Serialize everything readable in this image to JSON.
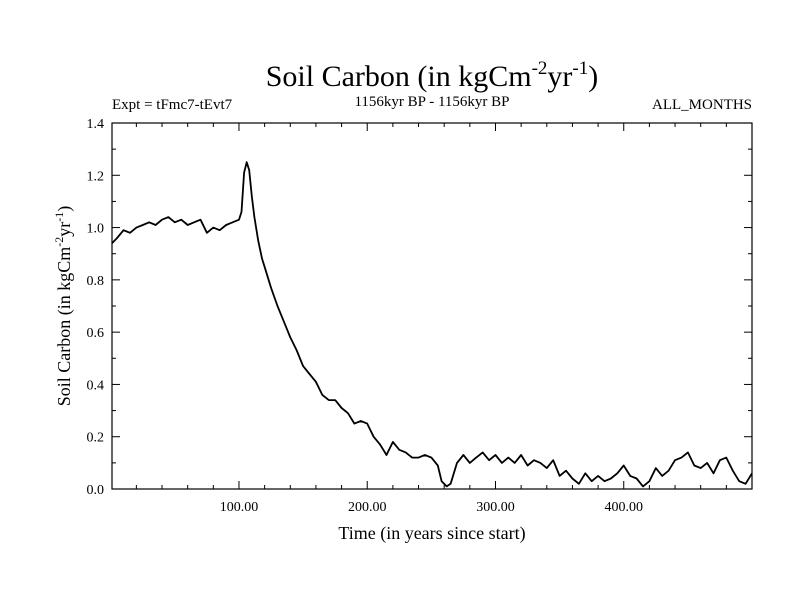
{
  "chart_data": {
    "type": "line",
    "title": {
      "main": "Soil Carbon (in kgCm",
      "sup1": "-2",
      "mid": "yr",
      "sup2": "-1",
      "end": ")"
    },
    "left_subtitle": "Expt = tFmc7-tEvt7",
    "center_subtitle": "1156kyr BP - 1156kyr BP",
    "right_subtitle": "ALL_MONTHS",
    "xlabel": "Time (in years since start)",
    "ylabel": {
      "main": "Soil Carbon (in kgCm",
      "sup1": "-2",
      "mid": "yr",
      "sup2": "-1",
      "end": ")"
    },
    "xlim": [
      1,
      500
    ],
    "ylim": [
      0.0,
      1.4
    ],
    "xticks": [
      {
        "value": 100,
        "label": "100.00"
      },
      {
        "value": 200,
        "label": "200.00"
      },
      {
        "value": 300,
        "label": "300.00"
      },
      {
        "value": 400,
        "label": "400.00"
      }
    ],
    "yticks": [
      {
        "value": 0.0,
        "label": "0.0"
      },
      {
        "value": 0.2,
        "label": "0.2"
      },
      {
        "value": 0.4,
        "label": "0.4"
      },
      {
        "value": 0.6,
        "label": "0.6"
      },
      {
        "value": 0.8,
        "label": "0.8"
      },
      {
        "value": 1.0,
        "label": "1.0"
      },
      {
        "value": 1.2,
        "label": "1.2"
      },
      {
        "value": 1.4,
        "label": "1.4"
      }
    ],
    "grid": false,
    "series": [
      {
        "color": "#000000",
        "x": [
          1,
          5,
          10,
          15,
          20,
          25,
          30,
          35,
          40,
          45,
          50,
          55,
          60,
          65,
          70,
          75,
          80,
          85,
          90,
          95,
          100,
          102,
          104,
          106,
          108,
          110,
          112,
          115,
          118,
          120,
          125,
          130,
          135,
          140,
          145,
          150,
          155,
          160,
          165,
          170,
          175,
          180,
          185,
          190,
          195,
          200,
          205,
          210,
          215,
          220,
          225,
          230,
          235,
          240,
          245,
          250,
          255,
          258,
          262,
          265,
          270,
          275,
          280,
          285,
          290,
          295,
          300,
          305,
          310,
          315,
          320,
          325,
          330,
          335,
          340,
          345,
          350,
          355,
          360,
          365,
          370,
          375,
          380,
          385,
          390,
          395,
          400,
          405,
          410,
          415,
          420,
          425,
          430,
          435,
          440,
          445,
          450,
          455,
          460,
          465,
          470,
          475,
          480,
          485,
          490,
          495,
          500
        ],
        "y": [
          0.94,
          0.96,
          0.99,
          0.98,
          1.0,
          1.01,
          1.02,
          1.01,
          1.03,
          1.04,
          1.02,
          1.03,
          1.01,
          1.02,
          1.03,
          0.98,
          1.0,
          0.99,
          1.01,
          1.02,
          1.03,
          1.06,
          1.21,
          1.25,
          1.22,
          1.12,
          1.04,
          0.95,
          0.88,
          0.85,
          0.77,
          0.7,
          0.64,
          0.58,
          0.53,
          0.47,
          0.44,
          0.41,
          0.36,
          0.34,
          0.34,
          0.31,
          0.29,
          0.25,
          0.26,
          0.25,
          0.2,
          0.17,
          0.13,
          0.18,
          0.15,
          0.14,
          0.12,
          0.12,
          0.13,
          0.12,
          0.09,
          0.03,
          0.01,
          0.02,
          0.1,
          0.13,
          0.1,
          0.12,
          0.14,
          0.11,
          0.13,
          0.1,
          0.12,
          0.1,
          0.13,
          0.09,
          0.11,
          0.1,
          0.08,
          0.11,
          0.05,
          0.07,
          0.04,
          0.02,
          0.06,
          0.03,
          0.05,
          0.03,
          0.04,
          0.06,
          0.09,
          0.05,
          0.04,
          0.01,
          0.03,
          0.08,
          0.05,
          0.07,
          0.11,
          0.12,
          0.14,
          0.09,
          0.08,
          0.1,
          0.06,
          0.11,
          0.12,
          0.07,
          0.03,
          0.02,
          0.06
        ]
      }
    ]
  }
}
